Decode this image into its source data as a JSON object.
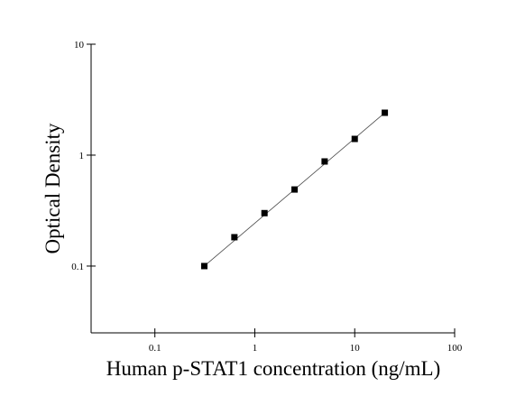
{
  "chart_data": {
    "type": "scatter",
    "x_label": "Human p-STAT1 concentration (ng/mL)",
    "y_label": "Optical Density",
    "x_log": true,
    "y_log": true,
    "xlim": [
      0.023,
      100
    ],
    "ylim": [
      0.025,
      10
    ],
    "xticks": [
      0.1,
      1,
      10,
      100
    ],
    "yticks": [
      0.1,
      1,
      10
    ],
    "fit_line": true,
    "series": [
      {
        "color": "#000000",
        "x": [
          0.3125,
          0.625,
          1.25,
          2.5,
          5,
          10,
          20
        ],
        "values": [
          0.1,
          0.182,
          0.3,
          0.49,
          0.877,
          1.4,
          2.41
        ]
      }
    ]
  }
}
